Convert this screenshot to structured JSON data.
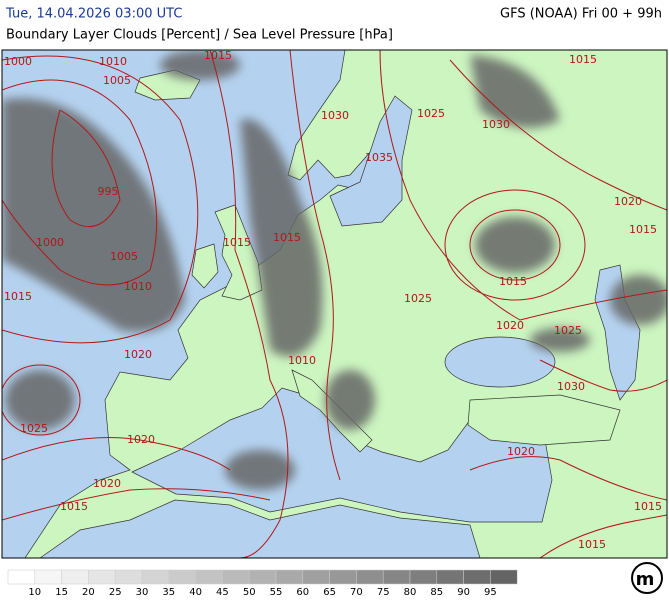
{
  "header": {
    "left": "Tue, 14.04.2026 03:00 UTC",
    "right": "GFS (NOAA) Fri 00 + 99h",
    "subtitle": "Boundary Layer Clouds [Percent] / Sea Level Pressure [hPa]"
  },
  "map": {
    "isobar_labels": [
      "1000",
      "1010",
      "1015",
      "1005",
      "1030",
      "1025",
      "1030",
      "1015",
      "1035",
      "995",
      "1020",
      "1015",
      "1000",
      "1015",
      "1015",
      "1005",
      "1010",
      "1015",
      "1025",
      "1015",
      "1020",
      "1025",
      "1020",
      "1010",
      "1030",
      "1025",
      "1020",
      "1020",
      "1020",
      "1015",
      "1015",
      "1015"
    ]
  },
  "legend": {
    "labels": [
      "10",
      "15",
      "20",
      "25",
      "30",
      "35",
      "40",
      "45",
      "50",
      "55",
      "60",
      "65",
      "70",
      "75",
      "80",
      "85",
      "90",
      "95"
    ]
  },
  "logo": "m"
}
